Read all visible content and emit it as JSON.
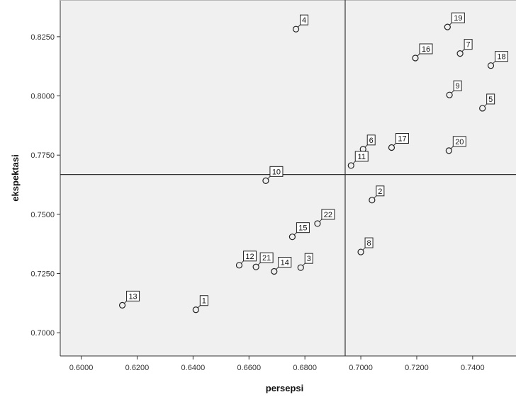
{
  "chart_data": {
    "type": "scatter",
    "title": "",
    "xlabel": "persepsi",
    "ylabel": "ekspektasi",
    "xlim": [
      0.5925,
      0.7555
    ],
    "ylim": [
      0.6902,
      0.8405
    ],
    "xticks": [
      0.6,
      0.62,
      0.64,
      0.66,
      0.68,
      0.7,
      0.72,
      0.74
    ],
    "xtick_labels": [
      "0.6000",
      "0.6200",
      "0.6400",
      "0.6600",
      "0.6800",
      "0.7000",
      "0.7200",
      "0.7400"
    ],
    "yticks": [
      0.7,
      0.725,
      0.75,
      0.775,
      0.8,
      0.825
    ],
    "ytick_labels": [
      "0.7000",
      "0.7250",
      "0.7500",
      "0.7750",
      "0.8000",
      "0.8250"
    ],
    "reference_lines": {
      "x": 0.6944,
      "y": 0.7668
    },
    "grid": false,
    "marker": "open-circle",
    "background": "#f0f0f0",
    "points": [
      {
        "label": "1",
        "x": 0.641,
        "y": 0.7097
      },
      {
        "label": "2",
        "x": 0.704,
        "y": 0.756
      },
      {
        "label": "3",
        "x": 0.6785,
        "y": 0.7275
      },
      {
        "label": "4",
        "x": 0.6768,
        "y": 0.8282
      },
      {
        "label": "5",
        "x": 0.7435,
        "y": 0.7948
      },
      {
        "label": "6",
        "x": 0.7008,
        "y": 0.7775
      },
      {
        "label": "7",
        "x": 0.7355,
        "y": 0.8179
      },
      {
        "label": "8",
        "x": 0.7,
        "y": 0.7341
      },
      {
        "label": "9",
        "x": 0.7317,
        "y": 0.8004
      },
      {
        "label": "10",
        "x": 0.666,
        "y": 0.7642
      },
      {
        "label": "11",
        "x": 0.6965,
        "y": 0.7706
      },
      {
        "label": "12",
        "x": 0.6565,
        "y": 0.7285
      },
      {
        "label": "13",
        "x": 0.6147,
        "y": 0.7116
      },
      {
        "label": "14",
        "x": 0.669,
        "y": 0.7259
      },
      {
        "label": "15",
        "x": 0.6755,
        "y": 0.7405
      },
      {
        "label": "16",
        "x": 0.7195,
        "y": 0.816
      },
      {
        "label": "17",
        "x": 0.711,
        "y": 0.7782
      },
      {
        "label": "18",
        "x": 0.7465,
        "y": 0.8128
      },
      {
        "label": "19",
        "x": 0.731,
        "y": 0.8291
      },
      {
        "label": "20",
        "x": 0.7315,
        "y": 0.7769
      },
      {
        "label": "21",
        "x": 0.6625,
        "y": 0.7278
      },
      {
        "label": "22",
        "x": 0.6845,
        "y": 0.7461
      }
    ]
  }
}
